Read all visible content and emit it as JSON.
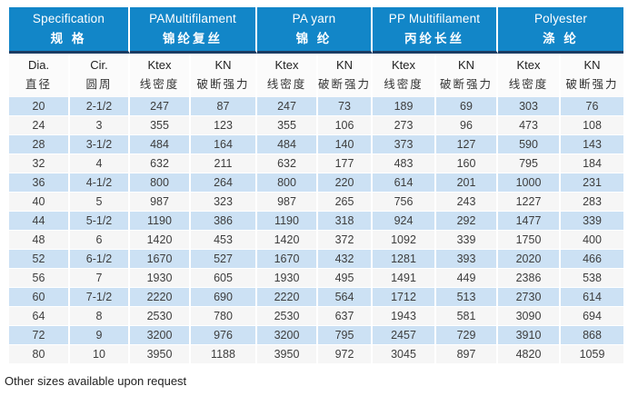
{
  "table": {
    "groups": [
      {
        "en": "Specification",
        "zh": "规 格",
        "cols": 2
      },
      {
        "en": "PAMultifilament",
        "zh": "锦纶复丝",
        "cols": 2
      },
      {
        "en": "PA yarn",
        "zh": "锦 纶",
        "cols": 2
      },
      {
        "en": "PP Multifilament",
        "zh": "丙纶长丝",
        "cols": 2
      },
      {
        "en": "Polyester",
        "zh": "涤 纶",
        "cols": 2
      }
    ],
    "columns": [
      {
        "en": "Dia.",
        "zh": "直径"
      },
      {
        "en": "Cir.",
        "zh": "圆周"
      },
      {
        "en": "Ktex",
        "zh": "线密度"
      },
      {
        "en": "KN",
        "zh": "破断强力"
      },
      {
        "en": "Ktex",
        "zh": "线密度"
      },
      {
        "en": "KN",
        "zh": "破断强力"
      },
      {
        "en": "Ktex",
        "zh": "线密度"
      },
      {
        "en": "KN",
        "zh": "破断强力"
      },
      {
        "en": "Ktex",
        "zh": "线密度"
      },
      {
        "en": "KN",
        "zh": "破断强力"
      }
    ],
    "rows": [
      [
        "20",
        "2-1/2",
        "247",
        "87",
        "247",
        "73",
        "189",
        "69",
        "303",
        "76"
      ],
      [
        "24",
        "3",
        "355",
        "123",
        "355",
        "106",
        "273",
        "96",
        "473",
        "108"
      ],
      [
        "28",
        "3-1/2",
        "484",
        "164",
        "484",
        "140",
        "373",
        "127",
        "590",
        "143"
      ],
      [
        "32",
        "4",
        "632",
        "211",
        "632",
        "177",
        "483",
        "160",
        "795",
        "184"
      ],
      [
        "36",
        "4-1/2",
        "800",
        "264",
        "800",
        "220",
        "614",
        "201",
        "1000",
        "231"
      ],
      [
        "40",
        "5",
        "987",
        "323",
        "987",
        "265",
        "756",
        "243",
        "1227",
        "283"
      ],
      [
        "44",
        "5-1/2",
        "1190",
        "386",
        "1190",
        "318",
        "924",
        "292",
        "1477",
        "339"
      ],
      [
        "48",
        "6",
        "1420",
        "453",
        "1420",
        "372",
        "1092",
        "339",
        "1750",
        "400"
      ],
      [
        "52",
        "6-1/2",
        "1670",
        "527",
        "1670",
        "432",
        "1281",
        "393",
        "2020",
        "466"
      ],
      [
        "56",
        "7",
        "1930",
        "605",
        "1930",
        "495",
        "1491",
        "449",
        "2386",
        "538"
      ],
      [
        "60",
        "7-1/2",
        "2220",
        "690",
        "2220",
        "564",
        "1712",
        "513",
        "2730",
        "614"
      ],
      [
        "64",
        "8",
        "2530",
        "780",
        "2530",
        "637",
        "1943",
        "581",
        "3090",
        "694"
      ],
      [
        "72",
        "9",
        "3200",
        "976",
        "3200",
        "795",
        "2457",
        "729",
        "3910",
        "868"
      ],
      [
        "80",
        "10",
        "3950",
        "1188",
        "3950",
        "972",
        "3045",
        "897",
        "4820",
        "1059"
      ]
    ]
  },
  "footer": {
    "note": "Other sizes available upon request"
  },
  "colors": {
    "header_bg": "#1286c8",
    "header_text": "#ffffff",
    "header_bottom_border": "#1b3c63",
    "row_alt_blue": "#cce1f4",
    "row_alt_gray": "#f6f6f6",
    "subheader_bg": "#fbfbfb",
    "body_text": "#3d3d3d"
  }
}
